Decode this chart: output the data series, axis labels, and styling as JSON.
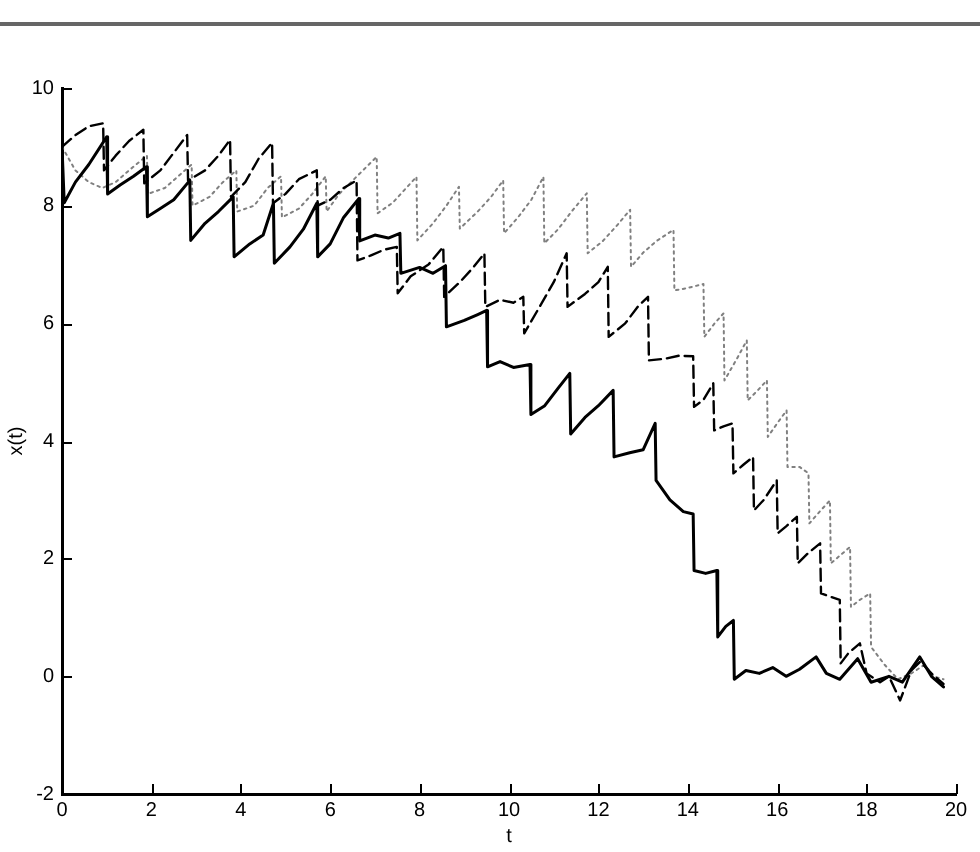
{
  "chart_data": {
    "type": "line",
    "xlabel": "t",
    "ylabel": "x(t)",
    "xlim": [
      0,
      20
    ],
    "xticks": [
      0,
      2,
      4,
      6,
      8,
      10,
      12,
      14,
      16,
      18,
      20
    ],
    "ylim": [
      -2,
      10
    ],
    "yticks": [
      -2,
      0,
      2,
      4,
      6,
      8,
      10
    ],
    "grid": false,
    "legend": false,
    "marker": "none",
    "series": [
      {
        "color": "#000000",
        "line_style": "solid",
        "x": [
          0,
          0.05,
          0.3,
          0.6,
          1.0,
          1.02,
          1.3,
          1.6,
          1.89,
          1.91,
          2.2,
          2.5,
          2.86,
          2.88,
          3.2,
          3.5,
          3.83,
          3.85,
          4.2,
          4.5,
          4.73,
          4.75,
          5.1,
          5.4,
          5.7,
          5.72,
          6.0,
          6.3,
          6.64,
          6.66,
          7.0,
          7.3,
          7.56,
          7.58,
          8.0,
          8.3,
          8.58,
          8.6,
          9.0,
          9.3,
          9.5,
          9.52,
          9.8,
          10.1,
          10.47,
          10.49,
          10.8,
          11.1,
          11.36,
          11.38,
          11.7,
          12.0,
          12.33,
          12.35,
          12.7,
          13.0,
          13.27,
          13.29,
          13.6,
          13.9,
          14.12,
          14.14,
          14.4,
          14.65,
          14.67,
          14.85,
          15.02,
          15.04,
          15.3,
          15.6,
          15.9,
          16.2,
          16.5,
          16.87,
          17.1,
          17.4,
          17.8,
          18.1,
          18.5,
          18.8,
          19.19,
          19.45,
          19.72
        ],
        "values": [
          9.0,
          8.05,
          8.4,
          8.7,
          9.17,
          8.2,
          8.35,
          8.5,
          8.66,
          7.81,
          7.95,
          8.1,
          8.43,
          7.41,
          7.7,
          7.9,
          8.15,
          7.13,
          7.35,
          7.5,
          8.04,
          7.02,
          7.3,
          7.6,
          8.04,
          7.13,
          7.35,
          7.8,
          8.12,
          7.4,
          7.5,
          7.45,
          7.53,
          6.85,
          6.95,
          6.85,
          6.98,
          5.94,
          6.05,
          6.15,
          6.22,
          5.26,
          5.35,
          5.25,
          5.3,
          4.45,
          4.6,
          4.9,
          5.15,
          4.12,
          4.4,
          4.6,
          4.86,
          3.73,
          3.8,
          3.85,
          4.3,
          3.33,
          3.0,
          2.8,
          2.76,
          1.8,
          1.75,
          1.8,
          0.67,
          0.85,
          0.95,
          -0.05,
          0.1,
          0.05,
          0.15,
          0.0,
          0.12,
          0.33,
          0.05,
          -0.05,
          0.3,
          -0.1,
          0.0,
          -0.1,
          0.33,
          0.0,
          -0.18
        ]
      },
      {
        "color": "#000000",
        "line_style": "dashed",
        "x": [
          0,
          0.3,
          0.6,
          0.92,
          0.94,
          1.2,
          1.5,
          1.82,
          1.84,
          2.2,
          2.5,
          2.8,
          2.82,
          3.2,
          3.5,
          3.76,
          3.78,
          4.1,
          4.4,
          4.7,
          4.72,
          5.0,
          5.3,
          5.7,
          5.72,
          6.0,
          6.3,
          6.59,
          6.61,
          6.9,
          7.2,
          7.49,
          7.51,
          7.8,
          8.2,
          8.53,
          8.55,
          8.9,
          9.2,
          9.45,
          9.47,
          9.8,
          10.1,
          10.32,
          10.34,
          10.7,
          11.0,
          11.29,
          11.31,
          11.7,
          12.0,
          12.21,
          12.23,
          12.6,
          12.9,
          13.11,
          13.13,
          13.5,
          13.8,
          14.12,
          14.14,
          14.35,
          14.57,
          14.59,
          14.8,
          15.0,
          15.02,
          15.25,
          15.46,
          15.48,
          15.7,
          15.99,
          16.01,
          16.2,
          16.44,
          16.46,
          16.7,
          16.96,
          16.98,
          17.2,
          17.4,
          17.42,
          17.6,
          17.85,
          18.0,
          18.3,
          18.5,
          18.75,
          19.0,
          19.2,
          19.45,
          19.72
        ],
        "values": [
          9.0,
          9.2,
          9.35,
          9.4,
          8.6,
          8.85,
          9.1,
          9.29,
          8.38,
          8.6,
          8.9,
          9.2,
          8.43,
          8.6,
          8.85,
          9.12,
          8.15,
          8.4,
          8.8,
          9.07,
          8.04,
          8.2,
          8.45,
          8.6,
          8.0,
          8.1,
          8.3,
          8.43,
          7.07,
          7.15,
          7.25,
          7.3,
          6.51,
          6.8,
          7.0,
          7.3,
          6.45,
          6.7,
          6.95,
          7.19,
          6.28,
          6.4,
          6.35,
          6.45,
          5.83,
          6.3,
          6.7,
          7.19,
          6.28,
          6.5,
          6.7,
          6.96,
          5.77,
          6.0,
          6.3,
          6.45,
          5.37,
          5.4,
          5.45,
          5.44,
          4.58,
          4.7,
          4.98,
          4.18,
          4.25,
          4.3,
          3.45,
          3.6,
          3.73,
          2.82,
          3.0,
          3.33,
          2.43,
          2.55,
          2.71,
          1.92,
          2.1,
          2.26,
          1.41,
          1.35,
          1.3,
          0.22,
          0.4,
          0.56,
          0.05,
          -0.1,
          0.0,
          -0.41,
          0.1,
          0.25,
          0.05,
          -0.13
        ]
      },
      {
        "color": "#808080",
        "line_style": "dotted",
        "x": [
          0,
          0.3,
          0.6,
          0.9,
          1.2,
          1.5,
          1.9,
          1.92,
          2.3,
          2.6,
          2.9,
          2.92,
          3.3,
          3.6,
          3.9,
          3.92,
          4.3,
          4.6,
          4.9,
          4.92,
          5.3,
          5.6,
          5.9,
          5.92,
          6.2,
          6.6,
          7.04,
          7.06,
          7.4,
          7.7,
          7.93,
          7.95,
          8.3,
          8.6,
          8.88,
          8.9,
          9.3,
          9.6,
          9.87,
          9.89,
          10.2,
          10.5,
          10.77,
          10.79,
          11.1,
          11.4,
          11.74,
          11.76,
          12.1,
          12.4,
          12.71,
          12.73,
          13.0,
          13.3,
          13.68,
          13.7,
          14.0,
          14.35,
          14.37,
          14.6,
          14.8,
          14.82,
          15.1,
          15.32,
          15.34,
          15.55,
          15.77,
          15.79,
          16.0,
          16.21,
          16.23,
          16.5,
          16.7,
          16.72,
          16.95,
          17.18,
          17.2,
          17.4,
          17.63,
          17.65,
          17.85,
          18.08,
          18.1,
          18.4,
          18.7,
          19.0,
          19.3,
          19.5,
          19.72
        ],
        "values": [
          9.0,
          8.6,
          8.4,
          8.3,
          8.4,
          8.6,
          8.85,
          8.2,
          8.3,
          8.5,
          8.7,
          8.0,
          8.15,
          8.4,
          8.6,
          7.9,
          8.0,
          8.3,
          8.5,
          7.8,
          7.95,
          8.2,
          8.5,
          7.9,
          8.2,
          8.5,
          8.83,
          7.87,
          8.05,
          8.3,
          8.49,
          7.41,
          7.7,
          8.0,
          8.32,
          7.61,
          7.9,
          8.15,
          8.43,
          7.53,
          7.8,
          8.1,
          8.49,
          7.36,
          7.6,
          7.9,
          8.21,
          7.19,
          7.4,
          7.65,
          7.93,
          6.96,
          7.2,
          7.4,
          7.59,
          6.56,
          6.6,
          6.67,
          5.77,
          6.0,
          6.17,
          5.03,
          5.4,
          5.71,
          4.69,
          4.85,
          5.03,
          4.07,
          4.3,
          4.52,
          3.56,
          3.56,
          3.45,
          2.6,
          2.8,
          2.99,
          1.92,
          2.05,
          2.2,
          1.18,
          1.3,
          1.41,
          0.5,
          0.2,
          -0.05,
          0.05,
          0.2,
          0.0,
          -0.05
        ]
      }
    ]
  }
}
